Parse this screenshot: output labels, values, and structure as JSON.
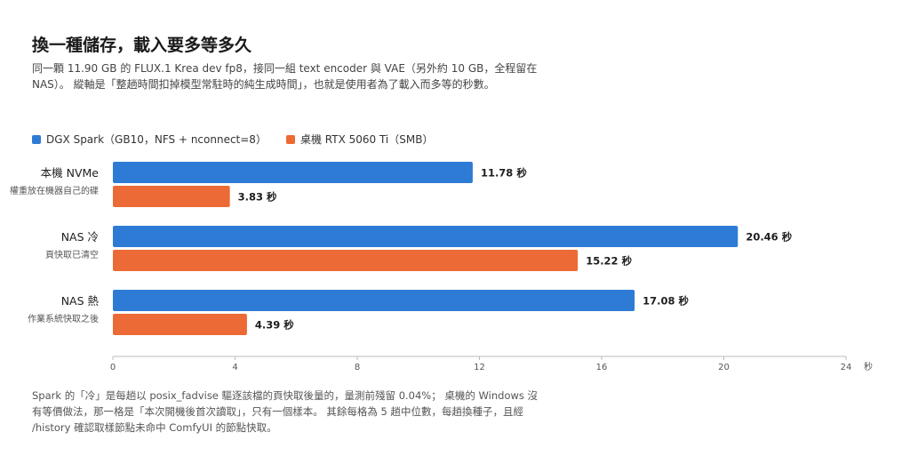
{
  "title": "換一種儲存，載入要多等多久",
  "subtitle": "同一顆 11.90 GB 的 FLUX.1 Krea dev fp8，接同一組 text encoder 與 VAE（另外約 10 GB，全程留在 NAS）。 縱軸是「整趟時間扣掉模型常駐時的純生成時間」，也就是使用者為了載入而多等的秒數。",
  "footnote": "Spark 的「冷」是每趟以 posix_fadvise 驅逐該檔的頁快取後量的，量測前殘留 0.04%； 桌機的 Windows 沒有等價做法，那一格是「本次開機後首次讀取」，只有一個樣本。 其餘每格為 5 趟中位數，每趟換種子，且經 /history 確認取樣節點未命中 ComfyUI 的節點快取。",
  "colors": {
    "spark": "#2e7bd6",
    "desktop": "#ec6a35"
  },
  "chart_data": {
    "type": "bar",
    "orientation": "horizontal",
    "categories": [
      "本機 NVMe",
      "NAS 冷",
      "NAS 熱"
    ],
    "category_sublabels": [
      "權重放在機器自己的碟",
      "頁快取已清空",
      "作業系統快取之後"
    ],
    "series": [
      {
        "name": "DGX Spark（GB10，NFS + nconnect=8）",
        "values": [
          11.78,
          20.46,
          17.08
        ]
      },
      {
        "name": "桌機 RTX 5060 Ti（SMB）",
        "values": [
          3.83,
          15.22,
          4.39
        ]
      }
    ],
    "value_labels": [
      [
        "11.78 秒",
        "20.46 秒",
        "17.08 秒"
      ],
      [
        "3.83 秒",
        "15.22 秒",
        "4.39 秒"
      ]
    ],
    "xlim": [
      0,
      24
    ],
    "xticks": [
      "0",
      "4",
      "8",
      "12",
      "16",
      "20",
      "24"
    ],
    "xunit": "秒",
    "grid": false,
    "legend_position": "top-left"
  }
}
